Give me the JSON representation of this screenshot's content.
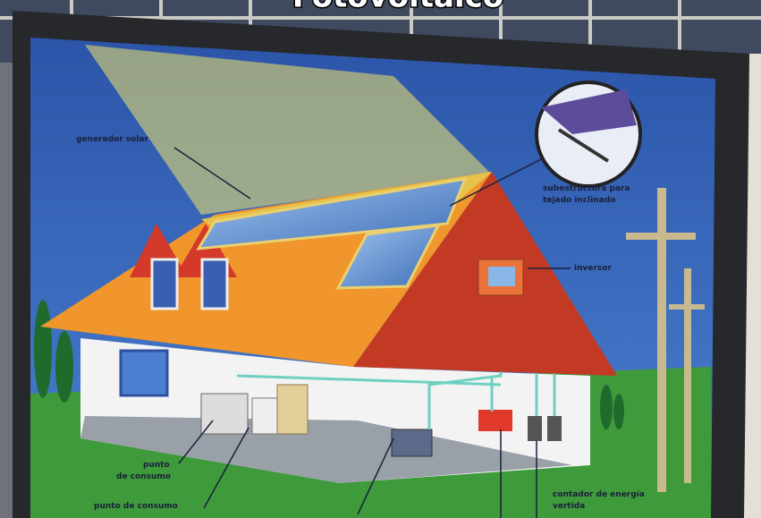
{
  "title": "Fotovoltaico",
  "labels": [
    {
      "lines": [
        "generador solar"
      ]
    },
    {
      "lines": [
        "subestructura para",
        "tejado inclinado"
      ]
    },
    {
      "lines": [
        "inversor"
      ]
    },
    {
      "lines": [
        "punto",
        "de consumo"
      ]
    },
    {
      "lines": [
        "punto de consumo"
      ]
    },
    {
      "lines": [
        "contador de energía",
        "vertida"
      ]
    }
  ]
}
